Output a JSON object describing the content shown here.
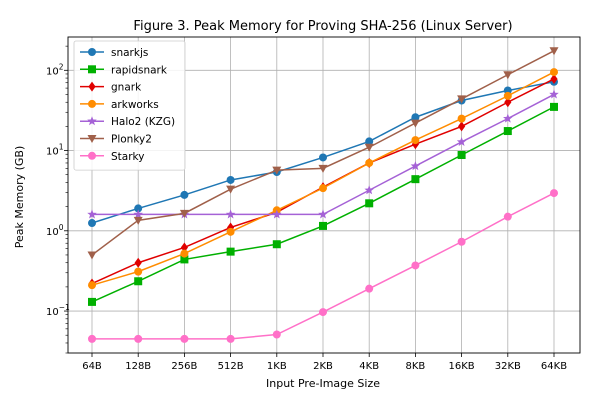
{
  "chart_data": {
    "type": "line",
    "title": "Figure 3. Peak Memory for Proving SHA-256 (Linux Server)",
    "xlabel": "Input Pre-Image Size",
    "ylabel": "Peak Memory (GB)",
    "yscale": "log",
    "ylim": [
      0.03,
      260
    ],
    "yticks": [
      {
        "value": 0.1,
        "base": "10",
        "exp": "−1"
      },
      {
        "value": 1,
        "base": "10",
        "exp": "0"
      },
      {
        "value": 10,
        "base": "10",
        "exp": "1"
      },
      {
        "value": 100,
        "base": "10",
        "exp": "2"
      }
    ],
    "grid": true,
    "legend_position": "top-left",
    "categories": [
      "64B",
      "128B",
      "256B",
      "512B",
      "1KB",
      "2KB",
      "4KB",
      "8KB",
      "16KB",
      "32KB",
      "64KB"
    ],
    "series": [
      {
        "name": "snarkjs",
        "color": "#1f77b4",
        "marker": "circle",
        "values": [
          1.25,
          1.9,
          2.8,
          4.3,
          5.4,
          8.2,
          13,
          26,
          42,
          56,
          72
        ]
      },
      {
        "name": "rapidsnark",
        "color": "#00b000",
        "marker": "square",
        "values": [
          0.13,
          0.235,
          0.44,
          0.55,
          0.68,
          1.15,
          2.2,
          4.4,
          8.8,
          17.5,
          35
        ]
      },
      {
        "name": "gnark",
        "color": "#e00000",
        "marker": "diamond",
        "values": [
          0.22,
          0.4,
          0.62,
          1.1,
          1.7,
          3.5,
          7.0,
          12,
          20,
          40,
          78
        ]
      },
      {
        "name": "arkworks",
        "color": "#ff8c00",
        "marker": "circle",
        "values": [
          0.21,
          0.31,
          0.52,
          0.97,
          1.8,
          3.4,
          7.0,
          13.5,
          25,
          48,
          95
        ]
      },
      {
        "name": "Halo2 (KZG)",
        "color": "#a562d6",
        "marker": "star",
        "values": [
          1.6,
          1.6,
          1.6,
          1.6,
          1.6,
          1.6,
          3.2,
          6.4,
          12.8,
          25,
          50
        ]
      },
      {
        "name": "Plonky2",
        "color": "#a0604a",
        "marker": "triangle-down",
        "values": [
          0.5,
          1.35,
          1.65,
          3.3,
          5.7,
          6.0,
          11,
          22,
          44,
          88,
          175
        ]
      },
      {
        "name": "Starky",
        "color": "#ff70c8",
        "marker": "circle",
        "values": [
          0.045,
          0.045,
          0.045,
          0.045,
          0.051,
          0.097,
          0.19,
          0.37,
          0.73,
          1.5,
          2.95
        ]
      }
    ]
  }
}
